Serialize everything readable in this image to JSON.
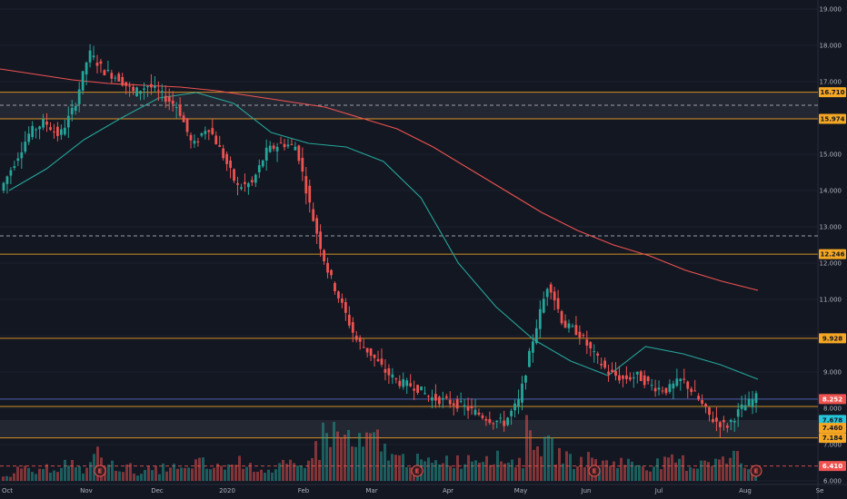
{
  "chart_data": {
    "type": "candlestick",
    "y_axis": {
      "min": 6.0,
      "max": 19.2,
      "ticks": [
        "6.000",
        "7.000",
        "8.000",
        "9.000",
        "10.000",
        "11.000",
        "12.000",
        "13.000",
        "14.000",
        "15.000",
        "16.000",
        "17.000",
        "18.000",
        "19.000"
      ]
    },
    "x_axis": {
      "labels": [
        "Oct",
        "Nov",
        "Dec",
        "2020",
        "Feb",
        "Mar",
        "Apr",
        "May",
        "Jun",
        "Jul",
        "Aug",
        "Se"
      ]
    },
    "price_labels": [
      {
        "value": 16.71,
        "text": "16.710",
        "color": "#f5a623",
        "text_color": "#131722"
      },
      {
        "value": 15.974,
        "text": "15.974",
        "color": "#f5a623",
        "text_color": "#131722"
      },
      {
        "value": 12.246,
        "text": "12.246",
        "color": "#f5a623",
        "text_color": "#131722"
      },
      {
        "value": 9.928,
        "text": "9.928",
        "color": "#f5a623",
        "text_color": "#131722"
      },
      {
        "value": 8.252,
        "text": "8.252",
        "color": "#ef5350",
        "text_color": "#ffffff"
      },
      {
        "value": 7.678,
        "text": "7.678",
        "color": "#26c6da",
        "text_color": "#131722"
      },
      {
        "value": 7.46,
        "text": "7.460",
        "color": "#f5a623",
        "text_color": "#131722"
      },
      {
        "value": 7.184,
        "text": "7.184",
        "color": "#f5a623",
        "text_color": "#131722"
      },
      {
        "value": 6.41,
        "text": "6.410",
        "color": "#ef5350",
        "text_color": "#ffffff"
      }
    ],
    "zones": [
      {
        "from": 15.974,
        "to": 16.71
      },
      {
        "from": 7.184,
        "to": 7.678
      }
    ],
    "horizontal_lines": [
      {
        "value": 16.71,
        "color": "#f5a623",
        "style": "solid"
      },
      {
        "value": 15.974,
        "color": "#f5a623",
        "style": "solid"
      },
      {
        "value": 16.35,
        "color": "#b2b5be",
        "style": "dashed"
      },
      {
        "value": 12.246,
        "color": "#f5a623",
        "style": "solid"
      },
      {
        "value": 12.75,
        "color": "#b2b5be",
        "style": "dashed"
      },
      {
        "value": 9.928,
        "color": "#f5a623",
        "style": "solid"
      },
      {
        "value": 8.252,
        "color": "#5c6bc0",
        "style": "solid"
      },
      {
        "value": 8.05,
        "color": "#f5a623",
        "style": "solid"
      },
      {
        "value": 7.184,
        "color": "#f5a623",
        "style": "solid"
      },
      {
        "value": 6.41,
        "color": "#ef5350",
        "style": "dashed"
      }
    ],
    "earnings_markers": {
      "label": "E",
      "dates": [
        "Nov",
        "Mar",
        "Jun",
        "Aug"
      ]
    },
    "ma_long": {
      "color": "#ef5350",
      "values": [
        17.35,
        17.2,
        17.05,
        16.95,
        16.9,
        16.85,
        16.75,
        16.6,
        16.45,
        16.3,
        16.0,
        15.7,
        15.2,
        14.6,
        14.0,
        13.4,
        12.9,
        12.5,
        12.2,
        11.8,
        11.5,
        11.25
      ]
    },
    "ma_short": {
      "color": "#26a69a",
      "values": [
        14.0,
        14.6,
        15.4,
        16.0,
        16.55,
        16.7,
        16.4,
        15.6,
        15.3,
        15.2,
        14.8,
        13.8,
        12.0,
        10.8,
        9.9,
        9.3,
        8.9,
        9.7,
        9.5,
        9.2,
        8.8
      ]
    },
    "ohlc_path": [
      14.0,
      14.8,
      15.6,
      15.9,
      15.5,
      16.3,
      17.8,
      17.3,
      17.1,
      16.7,
      16.9,
      16.6,
      16.3,
      15.2,
      15.8,
      15.0,
      14.1,
      14.2,
      15.1,
      15.3,
      15.2,
      13.4,
      11.9,
      10.9,
      9.9,
      9.5,
      9.0,
      8.7,
      8.6,
      8.3,
      8.2,
      8.1,
      7.9,
      7.7,
      7.6,
      8.2,
      10.0,
      11.5,
      10.3,
      10.1,
      9.5,
      9.0,
      8.8,
      8.9,
      8.6,
      8.5,
      8.8,
      8.3,
      7.7,
      7.5,
      8.0,
      8.3
    ],
    "volume": [
      3,
      5,
      4,
      6,
      8,
      5,
      12,
      7,
      6,
      4,
      5,
      6,
      5,
      8,
      6,
      7,
      9,
      6,
      5,
      7,
      6,
      14,
      22,
      20,
      16,
      18,
      14,
      10,
      9,
      8,
      10,
      9,
      11,
      12,
      10,
      9,
      22,
      15,
      12,
      9,
      10,
      8,
      9,
      8,
      7,
      8,
      9,
      7,
      10,
      9,
      11,
      6
    ]
  }
}
